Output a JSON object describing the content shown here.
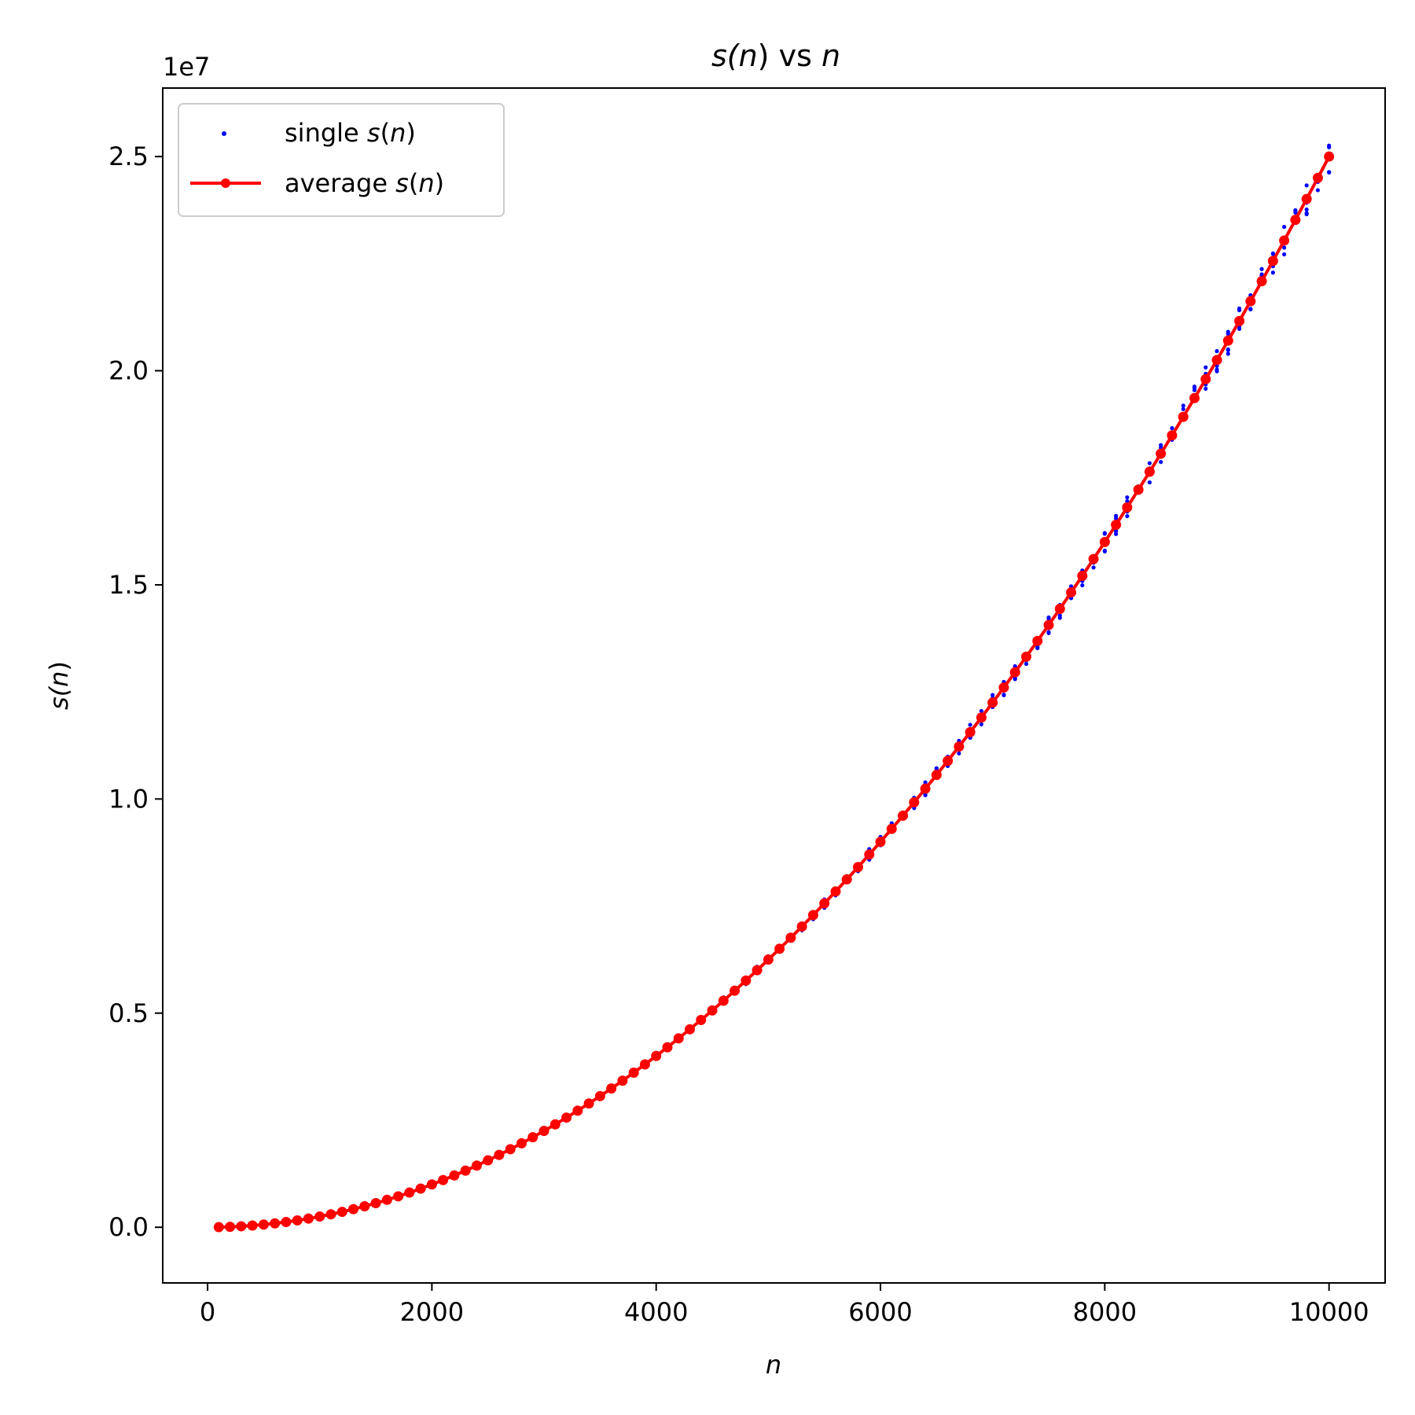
{
  "chart_data": {
    "type": "scatter",
    "title": {
      "pre": "s(",
      "var": "n",
      "post": ") vs ",
      "var2": "n"
    },
    "xlabel": "n",
    "ylabel": {
      "pre": "s(",
      "var": "n",
      "post": ")"
    },
    "offset_text": "1e7",
    "xlim": [
      -400,
      10500
    ],
    "ylim": [
      -1300000,
      26600000
    ],
    "xticks": [
      0,
      2000,
      4000,
      6000,
      8000,
      10000
    ],
    "xtick_labels": [
      "0",
      "2000",
      "4000",
      "6000",
      "8000",
      "10000"
    ],
    "yticks": [
      0,
      5000000,
      10000000,
      15000000,
      20000000,
      25000000
    ],
    "ytick_labels": [
      "0.0",
      "0.5",
      "1.0",
      "1.5",
      "2.0",
      "2.5"
    ],
    "grid": false,
    "legend": {
      "position": "upper-left",
      "entries": [
        {
          "pre": "single ",
          "var": "s",
          "mid": "(",
          "var2": "n",
          "post": ")"
        },
        {
          "pre": "average ",
          "var": "s",
          "mid": "(",
          "var2": "n",
          "post": ")"
        }
      ]
    },
    "series": [
      {
        "name": "single s(n)",
        "kind": "scatter",
        "color": "#0000ff",
        "note": "several single runs per n; n = 100 to 10000 step 100; spread about ±1.5% around the average",
        "x_start": 100,
        "x_end": 10000,
        "x_step": 100,
        "spread_fraction": 0.015,
        "runs_per_n": 5
      },
      {
        "name": "average s(n)",
        "kind": "line",
        "color": "#ff0000",
        "marker": "circle",
        "x_start": 100,
        "x_end": 10000,
        "x_step": 100,
        "model": "y = 0.25 * x^2",
        "y_at_x_10000": 25000000,
        "y_at_x_5000": 6250000,
        "y_at_x_2000": 1000000
      }
    ]
  }
}
